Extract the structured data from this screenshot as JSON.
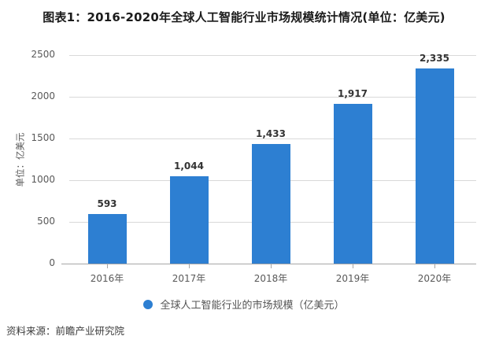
{
  "title": "图表1：2016-2020年全球人工智能行业市场规模统计情况(单位：亿美元)",
  "source": "资料来源：前瞻产业研究院",
  "legend": {
    "label": "全球人工智能行业的市场规模（亿美元）"
  },
  "colors": {
    "bar": "#2D7FD2",
    "grid": "#D9D9D9",
    "axis": "#A6A6A6",
    "title_text": "#1B1B1B",
    "value_text": "#333333",
    "tick_text": "#595959"
  },
  "chart_data": {
    "type": "bar",
    "categories": [
      "2016年",
      "2017年",
      "2018年",
      "2019年",
      "2020年"
    ],
    "values": [
      593,
      1044,
      1433,
      1917,
      2335
    ],
    "value_labels": [
      "593",
      "1,044",
      "1,433",
      "1,917",
      "2,335"
    ],
    "title": "图表1：2016-2020年全球人工智能行业市场规模统计情况(单位：亿美元)",
    "xlabel": "",
    "ylabel": "单位：亿美元",
    "ylim": [
      0,
      2500
    ],
    "ytick_step": 500,
    "yticks": [
      "0",
      "500",
      "1000",
      "1500",
      "2000",
      "2500"
    ],
    "grid": true,
    "legend_position": "bottom"
  }
}
